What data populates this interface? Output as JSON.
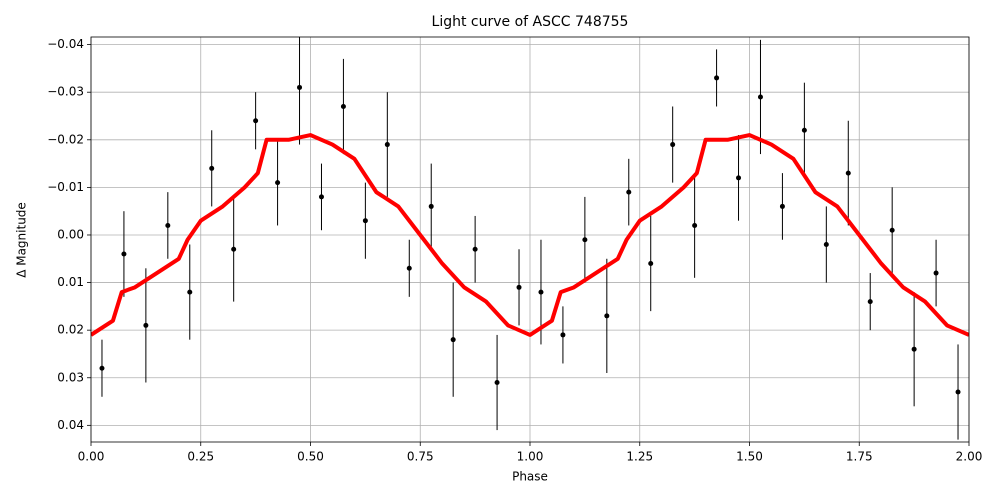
{
  "chart_data": {
    "type": "scatter",
    "title": "Light curve of ASCC 748755",
    "x_label": "Phase",
    "y_label": "Δ Magnitude",
    "xlim": [
      0,
      2
    ],
    "ylim": [
      0.0435,
      -0.0416
    ],
    "xticks": [
      {
        "value": 0,
        "label": "0.00"
      },
      {
        "value": 0.25,
        "label": "0.25"
      },
      {
        "value": 0.5,
        "label": "0.50"
      },
      {
        "value": 0.75,
        "label": "0.75"
      },
      {
        "value": 1,
        "label": "1.00"
      },
      {
        "value": 1.25,
        "label": "1.25"
      },
      {
        "value": 1.5,
        "label": "1.50"
      },
      {
        "value": 1.75,
        "label": "1.75"
      },
      {
        "value": 2,
        "label": "2.00"
      }
    ],
    "yticks": [
      {
        "value": -0.04,
        "label": "−0.04"
      },
      {
        "value": -0.03,
        "label": "−0.03"
      },
      {
        "value": -0.02,
        "label": "−0.02"
      },
      {
        "value": -0.01,
        "label": "−0.01"
      },
      {
        "value": 0,
        "label": "0.00"
      },
      {
        "value": 0.01,
        "label": "0.01"
      },
      {
        "value": 0.02,
        "label": "0.02"
      },
      {
        "value": 0.03,
        "label": "0.03"
      },
      {
        "value": 0.04,
        "label": "0.04"
      }
    ],
    "grid": true,
    "series": [
      {
        "type": "errorbar",
        "color": "#000000",
        "x": [
          0.025,
          0.075,
          0.125,
          0.175,
          0.225,
          0.275,
          0.325,
          0.375,
          0.425,
          0.475,
          0.525,
          0.575,
          0.625,
          0.675,
          0.725,
          0.775,
          0.825,
          0.875,
          0.925,
          0.975,
          1.025,
          1.075,
          1.125,
          1.175,
          1.225,
          1.275,
          1.325,
          1.375,
          1.425,
          1.475,
          1.525,
          1.575,
          1.625,
          1.675,
          1.725,
          1.775,
          1.825,
          1.875,
          1.925,
          1.975
        ],
        "values": [
          0.028,
          0.004,
          0.019,
          -0.002,
          0.012,
          -0.014,
          0.003,
          -0.024,
          -0.011,
          -0.031,
          -0.008,
          -0.027,
          -0.003,
          -0.019,
          0.007,
          -0.006,
          0.022,
          0.003,
          0.031,
          0.011,
          0.012,
          0.021,
          0.001,
          0.017,
          -0.009,
          0.006,
          -0.019,
          -0.002,
          -0.033,
          -0.012,
          -0.029,
          -0.006,
          -0.022,
          0.002,
          -0.013,
          0.014,
          -0.001,
          0.024,
          0.008,
          0.033
        ],
        "errors": [
          0.006,
          0.009,
          0.012,
          0.007,
          0.01,
          0.008,
          0.011,
          0.006,
          0.009,
          0.012,
          0.007,
          0.01,
          0.008,
          0.011,
          0.006,
          0.009,
          0.012,
          0.007,
          0.01,
          0.008,
          0.011,
          0.006,
          0.009,
          0.012,
          0.007,
          0.01,
          0.008,
          0.011,
          0.006,
          0.009,
          0.012,
          0.007,
          0.01,
          0.008,
          0.011,
          0.006,
          0.009,
          0.012,
          0.007,
          0.01
        ]
      },
      {
        "type": "line",
        "color": "#ff0000",
        "x": [
          0,
          0.05,
          0.07,
          0.1,
          0.15,
          0.2,
          0.22,
          0.25,
          0.3,
          0.35,
          0.38,
          0.4,
          0.45,
          0.5,
          0.55,
          0.6,
          0.65,
          0.7,
          0.75,
          0.8,
          0.85,
          0.9,
          0.95,
          1,
          1.05,
          1.07,
          1.1,
          1.15,
          1.2,
          1.22,
          1.25,
          1.3,
          1.35,
          1.38,
          1.4,
          1.45,
          1.5,
          1.55,
          1.6,
          1.65,
          1.7,
          1.75,
          1.8,
          1.85,
          1.9,
          1.95,
          2
        ],
        "values": [
          0.021,
          0.018,
          0.012,
          0.011,
          0.008,
          0.005,
          0.001,
          -0.003,
          -0.006,
          -0.01,
          -0.013,
          -0.02,
          -0.02,
          -0.021,
          -0.019,
          -0.016,
          -0.009,
          -0.006,
          0,
          0.006,
          0.011,
          0.014,
          0.019,
          0.021,
          0.018,
          0.012,
          0.011,
          0.008,
          0.005,
          0.001,
          -0.003,
          -0.006,
          -0.01,
          -0.013,
          -0.02,
          -0.02,
          -0.021,
          -0.019,
          -0.016,
          -0.009,
          -0.006,
          0,
          0.006,
          0.011,
          0.014,
          0.019,
          0.021
        ]
      }
    ]
  }
}
